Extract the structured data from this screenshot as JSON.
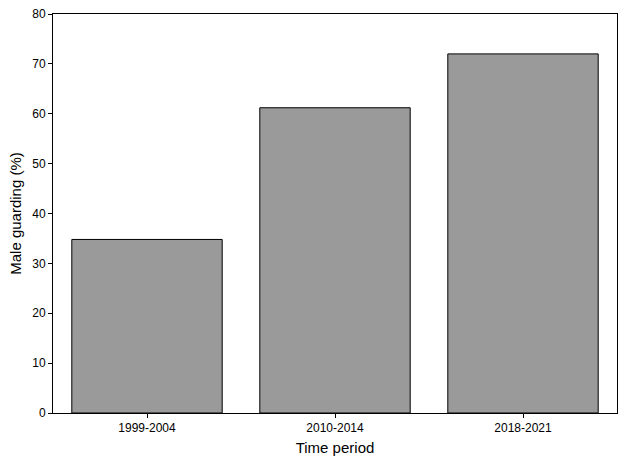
{
  "chart_data": {
    "type": "bar",
    "x_label": "Time period",
    "y_label": "Male guarding (%)",
    "categories": [
      "1999-2004",
      "2010-2014",
      "2018-2021"
    ],
    "values": [
      34.8,
      61.2,
      72.0
    ],
    "color": "#9a9a9a",
    "ylim": [
      0,
      80
    ],
    "yticks": [
      0,
      10,
      20,
      30,
      40,
      50,
      60,
      70,
      80
    ],
    "grid": false
  }
}
